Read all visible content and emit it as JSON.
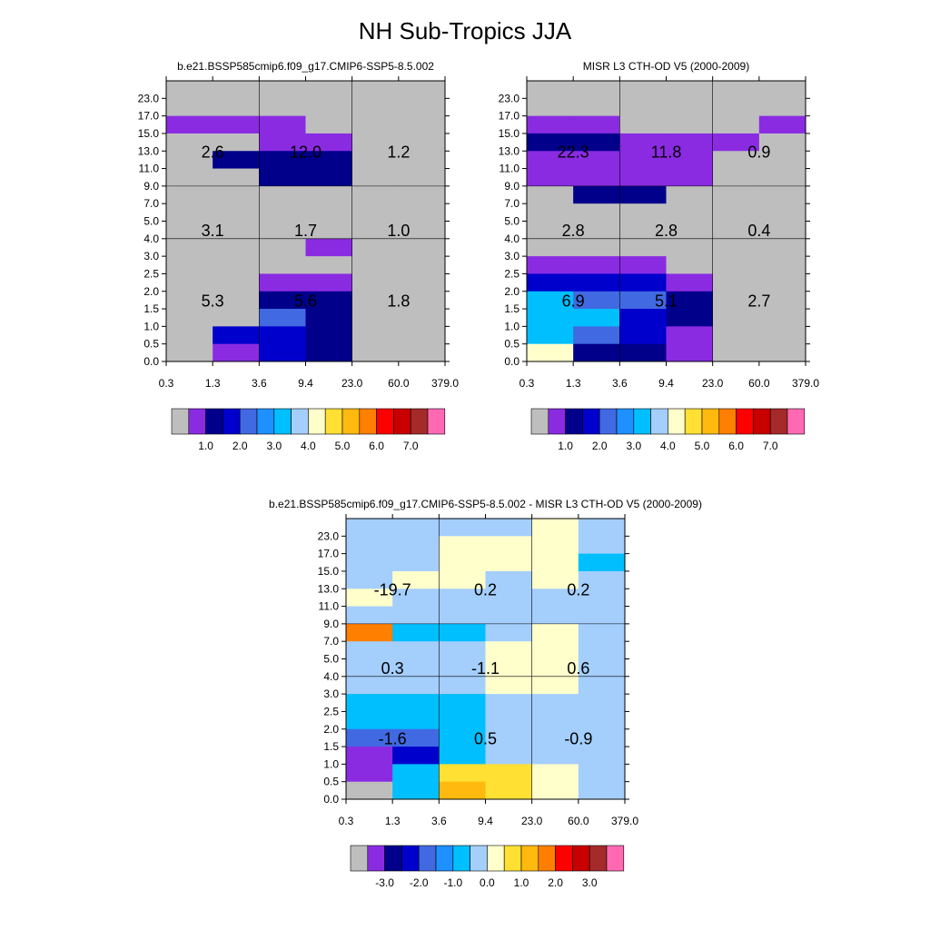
{
  "figure_title": "NH Sub-Tropics JJA",
  "palette": [
    "#BEBEBE",
    "#8A2BE2",
    "#00008B",
    "#0000CD",
    "#4169E1",
    "#1E90FF",
    "#00BFFF",
    "#A4CEFC",
    "#FFFFCC",
    "#FFE033",
    "#FFB90F",
    "#FF7F00",
    "#FF0000",
    "#C80000",
    "#A52A2A",
    "#FF69B4"
  ],
  "chart_data": [
    {
      "type": "heatmap",
      "title": "b.e21.BSSP585cmip6.f09_g17.CMIP6-SSP5-8.5.002",
      "xticks": [
        "0.3",
        "1.3",
        "3.6",
        "9.4",
        "23.0",
        "60.0",
        "379.0"
      ],
      "yticks": [
        "0.0",
        "0.5",
        "1.0",
        "1.5",
        "2.0",
        "2.5",
        "3.0",
        "4.0",
        "5.0",
        "7.0",
        "9.0",
        "11.0",
        "13.0",
        "15.0",
        "17.0",
        "23.0"
      ],
      "grid": [
        [
          0,
          0,
          0,
          0,
          0,
          0
        ],
        [
          0,
          0,
          0,
          0,
          0,
          0
        ],
        [
          1,
          1,
          1,
          0,
          0,
          0
        ],
        [
          0,
          0,
          1,
          1,
          0,
          0
        ],
        [
          0,
          2,
          2,
          2,
          0,
          0
        ],
        [
          0,
          0,
          2,
          2,
          0,
          0
        ],
        [
          0,
          0,
          0,
          0,
          0,
          0
        ],
        [
          0,
          0,
          0,
          0,
          0,
          0
        ],
        [
          0,
          0,
          0,
          0,
          0,
          0
        ],
        [
          0,
          0,
          0,
          1,
          0,
          0
        ],
        [
          0,
          0,
          0,
          0,
          0,
          0
        ],
        [
          0,
          0,
          1,
          1,
          0,
          0
        ],
        [
          0,
          0,
          2,
          2,
          0,
          0
        ],
        [
          0,
          0,
          4,
          2,
          0,
          0
        ],
        [
          0,
          3,
          3,
          2,
          0,
          0
        ],
        [
          0,
          1,
          3,
          2,
          0,
          0
        ]
      ],
      "annotations": [
        {
          "label": "5.3",
          "col": 1,
          "row": 12.5
        },
        {
          "label": "5.6",
          "col": 3,
          "row": 12.5
        },
        {
          "label": "1.8",
          "col": 5,
          "row": 12.5
        },
        {
          "label": "3.1",
          "col": 1,
          "row": 8.5
        },
        {
          "label": "1.7",
          "col": 3,
          "row": 8.5
        },
        {
          "label": "1.0",
          "col": 5,
          "row": 8.5
        },
        {
          "label": "2.6",
          "col": 1,
          "row": 4
        },
        {
          "label": "12.0",
          "col": 3,
          "row": 4
        },
        {
          "label": "1.2",
          "col": 5,
          "row": 4
        }
      ],
      "colorbar_labels": [
        "1.0",
        "2.0",
        "3.0",
        "4.0",
        "5.0",
        "6.0",
        "7.0"
      ]
    },
    {
      "type": "heatmap",
      "title": "MISR L3 CTH-OD V5 (2000-2009)",
      "xticks": [
        "0.3",
        "1.3",
        "3.6",
        "9.4",
        "23.0",
        "60.0",
        "379.0"
      ],
      "yticks": [
        "0.0",
        "0.5",
        "1.0",
        "1.5",
        "2.0",
        "2.5",
        "3.0",
        "4.0",
        "5.0",
        "7.0",
        "9.0",
        "11.0",
        "13.0",
        "15.0",
        "17.0",
        "23.0"
      ],
      "grid": [
        [
          0,
          0,
          0,
          0,
          0,
          0
        ],
        [
          0,
          0,
          0,
          0,
          0,
          0
        ],
        [
          1,
          1,
          0,
          0,
          0,
          1
        ],
        [
          2,
          2,
          1,
          1,
          1,
          0
        ],
        [
          1,
          1,
          1,
          1,
          0,
          0
        ],
        [
          1,
          1,
          1,
          1,
          0,
          0
        ],
        [
          0,
          2,
          2,
          0,
          0,
          0
        ],
        [
          0,
          0,
          0,
          0,
          0,
          0
        ],
        [
          0,
          0,
          0,
          0,
          0,
          0
        ],
        [
          0,
          0,
          0,
          0,
          0,
          0
        ],
        [
          1,
          1,
          1,
          0,
          0,
          0
        ],
        [
          3,
          3,
          3,
          1,
          0,
          0
        ],
        [
          6,
          4,
          4,
          2,
          0,
          0
        ],
        [
          6,
          6,
          3,
          2,
          0,
          0
        ],
        [
          6,
          4,
          3,
          1,
          0,
          0
        ],
        [
          8,
          2,
          2,
          1,
          0,
          0
        ]
      ],
      "annotations": [
        {
          "label": "6.9",
          "col": 1,
          "row": 12.5
        },
        {
          "label": "5.1",
          "col": 3,
          "row": 12.5
        },
        {
          "label": "2.7",
          "col": 5,
          "row": 12.5
        },
        {
          "label": "2.8",
          "col": 1,
          "row": 8.5
        },
        {
          "label": "2.8",
          "col": 3,
          "row": 8.5
        },
        {
          "label": "0.4",
          "col": 5,
          "row": 8.5
        },
        {
          "label": "22.3",
          "col": 1,
          "row": 4
        },
        {
          "label": "11.8",
          "col": 3,
          "row": 4
        },
        {
          "label": "0.9",
          "col": 5,
          "row": 4
        }
      ],
      "colorbar_labels": [
        "1.0",
        "2.0",
        "3.0",
        "4.0",
        "5.0",
        "6.0",
        "7.0"
      ]
    },
    {
      "type": "heatmap",
      "title": "b.e21.BSSP585cmip6.f09_g17.CMIP6-SSP5-8.5.002 - MISR L3 CTH-OD V5 (2000-2009)",
      "xticks": [
        "0.3",
        "1.3",
        "3.6",
        "9.4",
        "23.0",
        "60.0",
        "379.0"
      ],
      "yticks": [
        "0.0",
        "0.5",
        "1.0",
        "1.5",
        "2.0",
        "2.5",
        "3.0",
        "4.0",
        "5.0",
        "7.0",
        "9.0",
        "11.0",
        "13.0",
        "15.0",
        "17.0",
        "23.0"
      ],
      "grid": [
        [
          7,
          7,
          7,
          7,
          8,
          7
        ],
        [
          7,
          7,
          8,
          8,
          8,
          7
        ],
        [
          7,
          7,
          8,
          8,
          8,
          6
        ],
        [
          7,
          8,
          8,
          7,
          8,
          7
        ],
        [
          8,
          7,
          7,
          7,
          7,
          7
        ],
        [
          7,
          7,
          7,
          7,
          7,
          7
        ],
        [
          11,
          6,
          6,
          7,
          8,
          7
        ],
        [
          7,
          7,
          7,
          8,
          8,
          7
        ],
        [
          7,
          7,
          7,
          8,
          8,
          7
        ],
        [
          7,
          7,
          7,
          8,
          8,
          7
        ],
        [
          6,
          6,
          6,
          7,
          7,
          7
        ],
        [
          6,
          6,
          6,
          7,
          7,
          7
        ],
        [
          4,
          4,
          6,
          7,
          7,
          7
        ],
        [
          1,
          3,
          6,
          7,
          7,
          7
        ],
        [
          1,
          6,
          9,
          9,
          8,
          7
        ],
        [
          0,
          6,
          10,
          9,
          8,
          7
        ]
      ],
      "annotations": [
        {
          "label": "-1.6",
          "col": 1,
          "row": 12.5
        },
        {
          "label": "0.5",
          "col": 3,
          "row": 12.5
        },
        {
          "label": "-0.9",
          "col": 5,
          "row": 12.5
        },
        {
          "label": "0.3",
          "col": 1,
          "row": 8.5
        },
        {
          "label": "-1.1",
          "col": 3,
          "row": 8.5
        },
        {
          "label": "0.6",
          "col": 5,
          "row": 8.5
        },
        {
          "label": "-19.7",
          "col": 1,
          "row": 4
        },
        {
          "label": "0.2",
          "col": 3,
          "row": 4
        },
        {
          "label": "0.2",
          "col": 5,
          "row": 4
        }
      ],
      "colorbar_labels": [
        "-3.0",
        "-2.0",
        "-1.0",
        "0.0",
        "1.0",
        "2.0",
        "3.0"
      ]
    }
  ]
}
